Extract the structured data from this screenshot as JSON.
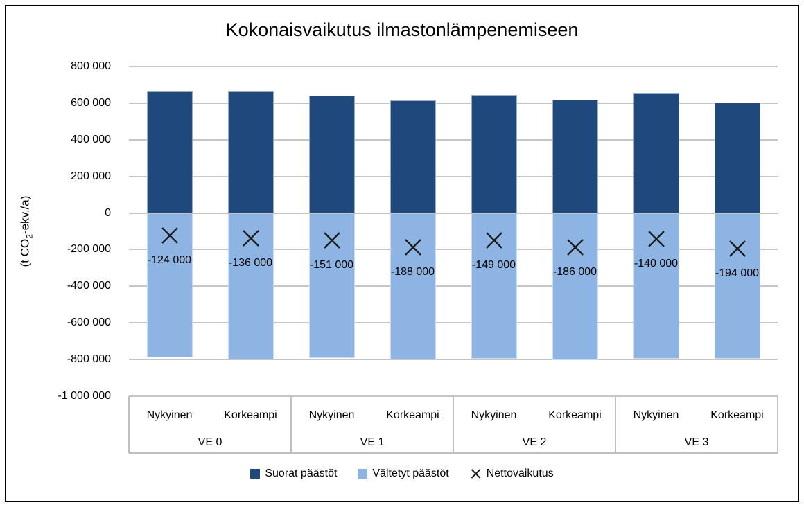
{
  "chart_data": {
    "type": "bar",
    "subtype": "stacked-bars-with-x-markers",
    "title": "Kokonaisvaikutus ilmastonlämpenemiseen",
    "ylabel": "(t CO2-ekv./a)",
    "ylabel_parts": {
      "pre": "(t CO",
      "sub": "2",
      "post": "-ekv./a)"
    },
    "groups": [
      "VE 0",
      "VE 1",
      "VE 2",
      "VE 3"
    ],
    "subcategories": [
      "Nykyinen",
      "Korkeampi"
    ],
    "categories": [
      "VE 0 Nykyinen",
      "VE 0 Korkeampi",
      "VE 1 Nykyinen",
      "VE 1 Korkeampi",
      "VE 2 Nykyinen",
      "VE 2 Korkeampi",
      "VE 3 Nykyinen",
      "VE 3 Korkeampi"
    ],
    "series": [
      {
        "name": "Suorat päästöt",
        "type": "bar",
        "color": "#1F497D",
        "values": [
          665000,
          663000,
          640000,
          613000,
          645000,
          617000,
          656000,
          602000
        ]
      },
      {
        "name": "Vältetyt päästöt",
        "type": "bar",
        "color": "#8DB4E2",
        "values": [
          -789000,
          -799000,
          -791000,
          -801000,
          -794000,
          -803000,
          -796000,
          -796000
        ]
      },
      {
        "name": "Nettovaikutus",
        "type": "scatter",
        "marker": "x",
        "color": "#1A1A1A",
        "values": [
          -124000,
          -136000,
          -151000,
          -188000,
          -149000,
          -186000,
          -140000,
          -194000
        ],
        "labels": [
          "-124 000",
          "-136 000",
          "-151 000",
          "-188 000",
          "-149 000",
          "-186 000",
          "-140 000",
          "-194 000"
        ]
      }
    ],
    "yaxis": {
      "min": -1000000,
      "max": 800000,
      "step": 200000,
      "tick_labels": [
        "800 000",
        "600 000",
        "400 000",
        "200 000",
        "0",
        "-200 000",
        "-400 000",
        "-600 000",
        "-800 000",
        "-1 000 000"
      ]
    },
    "grid": true,
    "legend_position": "bottom",
    "colors": {
      "gridline": "#C6C6C6",
      "axis_table_line": "#BFBFBF",
      "marker_stroke": "#1A1A1A",
      "text": "#000000"
    }
  }
}
